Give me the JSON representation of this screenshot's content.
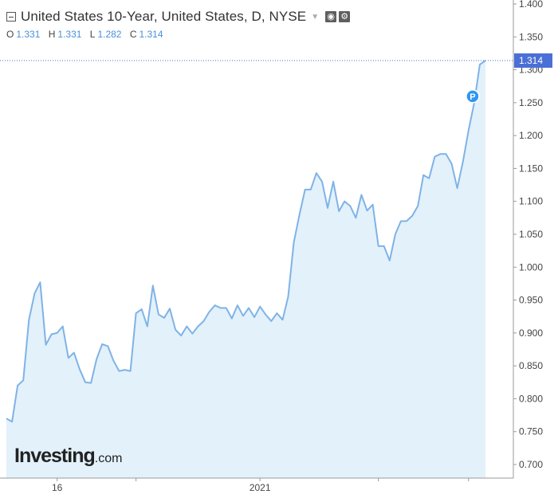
{
  "legend": {
    "title": "United States 10-Year, United States, D, NYSE",
    "o_label": "O",
    "o_value": "1.331",
    "h_label": "H",
    "h_value": "1.331",
    "l_label": "L",
    "l_value": "1.282",
    "c_label": "C",
    "c_value": "1.314"
  },
  "icons": {
    "collapse": "collapse-icon",
    "dropdown": "chevron-down-icon",
    "visibility": "eye-icon",
    "settings": "gear-icon"
  },
  "logo": {
    "main": "Investing",
    "suffix": ".com"
  },
  "colors": {
    "line": "#7fb3e6",
    "area": "#e3f1fb",
    "last_price": "#4a6fd6",
    "marker": "#2f96f0"
  },
  "chart_data": {
    "type": "area",
    "ylim": [
      0.68,
      1.405
    ],
    "yticks": [
      "0.700",
      "0.750",
      "0.800",
      "0.850",
      "0.900",
      "0.950",
      "1.000",
      "1.050",
      "1.100",
      "1.150",
      "1.200",
      "1.250",
      "1.300",
      "1.350",
      "1.400"
    ],
    "xticks": [
      {
        "label": "16",
        "index": 9
      },
      {
        "label": "2021",
        "index": 45
      }
    ],
    "last_value": 1.314,
    "last_label": "1.314",
    "marker_label": "P",
    "values": [
      0.77,
      0.765,
      0.82,
      0.828,
      0.92,
      0.96,
      0.977,
      0.882,
      0.898,
      0.9,
      0.91,
      0.862,
      0.87,
      0.845,
      0.825,
      0.824,
      0.86,
      0.883,
      0.88,
      0.858,
      0.842,
      0.844,
      0.842,
      0.93,
      0.936,
      0.91,
      0.972,
      0.928,
      0.923,
      0.937,
      0.905,
      0.896,
      0.91,
      0.899,
      0.91,
      0.918,
      0.932,
      0.942,
      0.938,
      0.938,
      0.922,
      0.942,
      0.926,
      0.938,
      0.924,
      0.94,
      0.928,
      0.918,
      0.93,
      0.92,
      0.955,
      1.038,
      1.08,
      1.118,
      1.118,
      1.143,
      1.13,
      1.09,
      1.13,
      1.085,
      1.1,
      1.093,
      1.075,
      1.11,
      1.086,
      1.095,
      1.032,
      1.032,
      1.01,
      1.05,
      1.07,
      1.07,
      1.078,
      1.093,
      1.14,
      1.135,
      1.168,
      1.172,
      1.172,
      1.157,
      1.12,
      1.16,
      1.208,
      1.25,
      1.308,
      1.314
    ]
  }
}
